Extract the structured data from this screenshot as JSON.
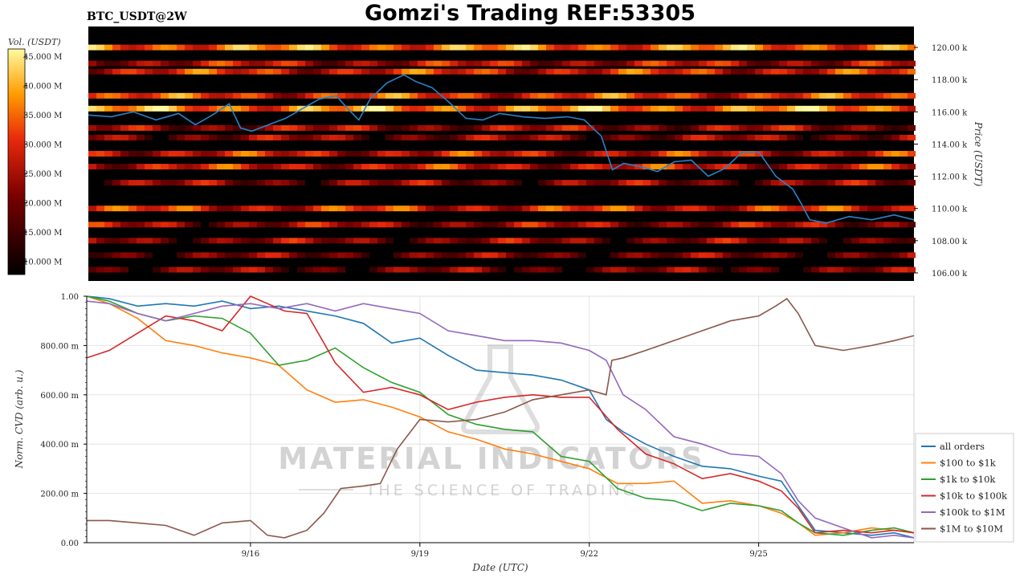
{
  "header": {
    "pair": "BTC_USDT@2W",
    "title": "Gomzi's Trading REF:53305"
  },
  "watermark": {
    "line1": "MATERIAL INDICATORS",
    "line2": "THE SCIENCE OF TRADING"
  },
  "colorbar": {
    "label": "Vol. (USDT)",
    "ticks": [
      "45.000 M",
      "40.000 M",
      "35.000 M",
      "30.000 M",
      "25.000 M",
      "20.000 M",
      "15.000 M",
      "10.000 M"
    ]
  },
  "chart_data": [
    {
      "type": "heatmap",
      "title": "BTC_USDT@2W",
      "ylabel": "Price (USDT)",
      "ylim": [
        105500,
        121300
      ],
      "ytick_values": [
        106000,
        108000,
        110000,
        112000,
        114000,
        116000,
        118000,
        120000
      ],
      "ytick_labels": [
        "106.00 k",
        "108.00 k",
        "110.00 k",
        "112.00 k",
        "114.00 k",
        "116.00 k",
        "118.00 k",
        "120.00 k"
      ],
      "xlim": [
        13.1,
        27.75
      ],
      "price_series": {
        "name": "price",
        "color": "#1f77b4",
        "x": [
          13.1,
          13.5,
          13.9,
          14.3,
          14.7,
          15.0,
          15.3,
          15.6,
          15.8,
          16.0,
          16.3,
          16.6,
          16.9,
          17.2,
          17.5,
          17.7,
          17.9,
          18.1,
          18.4,
          18.7,
          18.9,
          19.2,
          19.5,
          19.8,
          20.1,
          20.4,
          20.8,
          21.2,
          21.6,
          21.9,
          22.2,
          22.4,
          22.6,
          22.9,
          23.2,
          23.5,
          23.8,
          24.1,
          24.4,
          24.7,
          25.0,
          25.3,
          25.6,
          25.75,
          25.9,
          26.2,
          26.6,
          27.0,
          27.4,
          27.75
        ],
        "y": [
          115800,
          115700,
          116000,
          115500,
          115900,
          115200,
          115800,
          116500,
          115000,
          114800,
          115200,
          115600,
          116200,
          116800,
          117000,
          116200,
          115500,
          116800,
          117800,
          118300,
          117900,
          117500,
          116600,
          115600,
          115500,
          115900,
          115700,
          115600,
          115700,
          115500,
          114500,
          112400,
          112800,
          112600,
          112300,
          112900,
          113000,
          112000,
          112500,
          113500,
          113500,
          112000,
          111200,
          110300,
          109300,
          109100,
          109500,
          109300,
          109600,
          109300
        ]
      },
      "liquidity_bands": [
        {
          "y": 120000,
          "intensity": 0.72
        },
        {
          "y": 119000,
          "intensity": 0.45
        },
        {
          "y": 118500,
          "intensity": 0.55
        },
        {
          "y": 117000,
          "intensity": 0.6
        },
        {
          "y": 116200,
          "intensity": 0.75
        },
        {
          "y": 115000,
          "intensity": 0.4
        },
        {
          "y": 114400,
          "intensity": 0.35
        },
        {
          "y": 113400,
          "intensity": 0.5
        },
        {
          "y": 112600,
          "intensity": 0.5
        },
        {
          "y": 111600,
          "intensity": 0.35
        },
        {
          "y": 110000,
          "intensity": 0.55
        },
        {
          "y": 109000,
          "intensity": 0.4
        },
        {
          "y": 108000,
          "intensity": 0.35
        },
        {
          "y": 107100,
          "intensity": 0.3
        },
        {
          "y": 106200,
          "intensity": 0.3
        }
      ]
    },
    {
      "type": "line",
      "xlabel": "Date (UTC)",
      "ylabel": "Norm. CVD (arb. u.)",
      "xlim": [
        13.1,
        27.75
      ],
      "ylim": [
        0,
        1
      ],
      "xtick_values": [
        16,
        19,
        22,
        25
      ],
      "xtick_labels": [
        "9/16",
        "9/19",
        "9/22",
        "9/25"
      ],
      "ytick_values": [
        0,
        0.2,
        0.4,
        0.6,
        0.8,
        1.0
      ],
      "ytick_labels": [
        "0.00",
        "200.00 m",
        "400.00 m",
        "600.00 m",
        "800.00 m",
        "1.00"
      ],
      "series": [
        {
          "name": "all orders",
          "color": "#1f77b4",
          "x": [
            13.1,
            13.5,
            14.0,
            14.5,
            15.0,
            15.5,
            16.0,
            16.5,
            17.0,
            17.5,
            18.0,
            18.5,
            19.0,
            19.5,
            20.0,
            20.5,
            21.0,
            21.5,
            22.0,
            22.3,
            22.6,
            23.0,
            23.5,
            24.0,
            24.5,
            25.0,
            25.4,
            25.7,
            26.0,
            26.5,
            27.0,
            27.4,
            27.75
          ],
          "values": [
            1.0,
            0.99,
            0.96,
            0.97,
            0.96,
            0.98,
            0.95,
            0.96,
            0.94,
            0.92,
            0.89,
            0.81,
            0.83,
            0.76,
            0.7,
            0.69,
            0.68,
            0.66,
            0.62,
            0.5,
            0.45,
            0.4,
            0.35,
            0.31,
            0.3,
            0.27,
            0.25,
            0.15,
            0.05,
            0.04,
            0.03,
            0.04,
            0.02
          ]
        },
        {
          "name": "$100 to $1k",
          "color": "#ff7f0e",
          "x": [
            13.1,
            13.5,
            14.0,
            14.5,
            15.0,
            15.5,
            16.0,
            16.5,
            17.0,
            17.5,
            18.0,
            18.5,
            19.0,
            19.5,
            20.0,
            20.5,
            21.0,
            21.5,
            22.0,
            22.5,
            23.0,
            23.5,
            24.0,
            24.5,
            25.0,
            25.4,
            25.7,
            26.0,
            26.5,
            27.0,
            27.4,
            27.75
          ],
          "values": [
            1.0,
            0.97,
            0.91,
            0.82,
            0.8,
            0.77,
            0.75,
            0.72,
            0.62,
            0.57,
            0.58,
            0.55,
            0.51,
            0.45,
            0.42,
            0.38,
            0.36,
            0.33,
            0.3,
            0.24,
            0.24,
            0.25,
            0.16,
            0.17,
            0.15,
            0.12,
            0.08,
            0.03,
            0.04,
            0.06,
            0.05,
            0.04
          ]
        },
        {
          "name": "$1k to $10k",
          "color": "#2ca02c",
          "x": [
            13.1,
            13.5,
            14.0,
            14.5,
            15.0,
            15.5,
            16.0,
            16.5,
            17.0,
            17.5,
            18.0,
            18.5,
            19.0,
            19.5,
            20.0,
            20.5,
            21.0,
            21.5,
            22.0,
            22.5,
            23.0,
            23.5,
            24.0,
            24.5,
            25.0,
            25.4,
            25.7,
            26.0,
            26.5,
            27.0,
            27.4,
            27.75
          ],
          "values": [
            1.0,
            0.98,
            0.93,
            0.9,
            0.92,
            0.91,
            0.85,
            0.72,
            0.74,
            0.79,
            0.71,
            0.65,
            0.61,
            0.52,
            0.48,
            0.46,
            0.45,
            0.35,
            0.33,
            0.22,
            0.18,
            0.17,
            0.13,
            0.16,
            0.15,
            0.13,
            0.08,
            0.04,
            0.03,
            0.05,
            0.06,
            0.04
          ]
        },
        {
          "name": "$10k to $100k",
          "color": "#d62728",
          "x": [
            13.1,
            13.5,
            14.0,
            14.5,
            15.0,
            15.5,
            16.0,
            16.3,
            16.6,
            17.0,
            17.5,
            18.0,
            18.5,
            19.0,
            19.5,
            20.0,
            20.5,
            21.0,
            21.5,
            22.0,
            22.5,
            23.0,
            23.5,
            24.0,
            24.5,
            25.0,
            25.4,
            25.7,
            26.0,
            26.5,
            27.0,
            27.4,
            27.75
          ],
          "values": [
            0.75,
            0.78,
            0.85,
            0.92,
            0.9,
            0.86,
            1.0,
            0.97,
            0.94,
            0.93,
            0.73,
            0.61,
            0.63,
            0.6,
            0.54,
            0.57,
            0.59,
            0.6,
            0.59,
            0.59,
            0.46,
            0.36,
            0.32,
            0.26,
            0.28,
            0.25,
            0.21,
            0.14,
            0.04,
            0.05,
            0.04,
            0.05,
            0.04
          ]
        },
        {
          "name": "$100k to $1M",
          "color": "#9467bd",
          "x": [
            13.1,
            13.5,
            14.0,
            14.5,
            15.0,
            15.5,
            16.0,
            16.5,
            17.0,
            17.5,
            18.0,
            18.5,
            19.0,
            19.5,
            20.0,
            20.5,
            21.0,
            21.5,
            22.0,
            22.3,
            22.6,
            23.0,
            23.5,
            24.0,
            24.5,
            25.0,
            25.4,
            25.7,
            26.0,
            26.5,
            27.0,
            27.4,
            27.75
          ],
          "values": [
            0.98,
            0.97,
            0.93,
            0.9,
            0.93,
            0.96,
            0.97,
            0.95,
            0.97,
            0.94,
            0.97,
            0.95,
            0.93,
            0.86,
            0.84,
            0.82,
            0.82,
            0.81,
            0.78,
            0.74,
            0.6,
            0.54,
            0.43,
            0.4,
            0.36,
            0.35,
            0.28,
            0.17,
            0.1,
            0.06,
            0.02,
            0.03,
            0.02
          ]
        },
        {
          "name": "$1M to $10M",
          "color": "#8c564b",
          "x": [
            13.1,
            13.5,
            14.0,
            14.5,
            15.0,
            15.5,
            16.0,
            16.3,
            16.6,
            17.0,
            17.3,
            17.6,
            18.0,
            18.3,
            18.6,
            19.0,
            19.5,
            20.0,
            20.5,
            21.0,
            21.5,
            22.0,
            22.3,
            22.4,
            22.6,
            23.0,
            23.5,
            24.0,
            24.5,
            25.0,
            25.3,
            25.5,
            25.7,
            26.0,
            26.5,
            27.0,
            27.4,
            27.75
          ],
          "values": [
            0.09,
            0.09,
            0.08,
            0.07,
            0.03,
            0.08,
            0.09,
            0.03,
            0.02,
            0.05,
            0.12,
            0.22,
            0.23,
            0.24,
            0.38,
            0.5,
            0.49,
            0.5,
            0.53,
            0.58,
            0.6,
            0.62,
            0.6,
            0.74,
            0.75,
            0.78,
            0.82,
            0.86,
            0.9,
            0.92,
            0.96,
            0.99,
            0.93,
            0.8,
            0.78,
            0.8,
            0.82,
            0.84
          ]
        }
      ]
    }
  ]
}
